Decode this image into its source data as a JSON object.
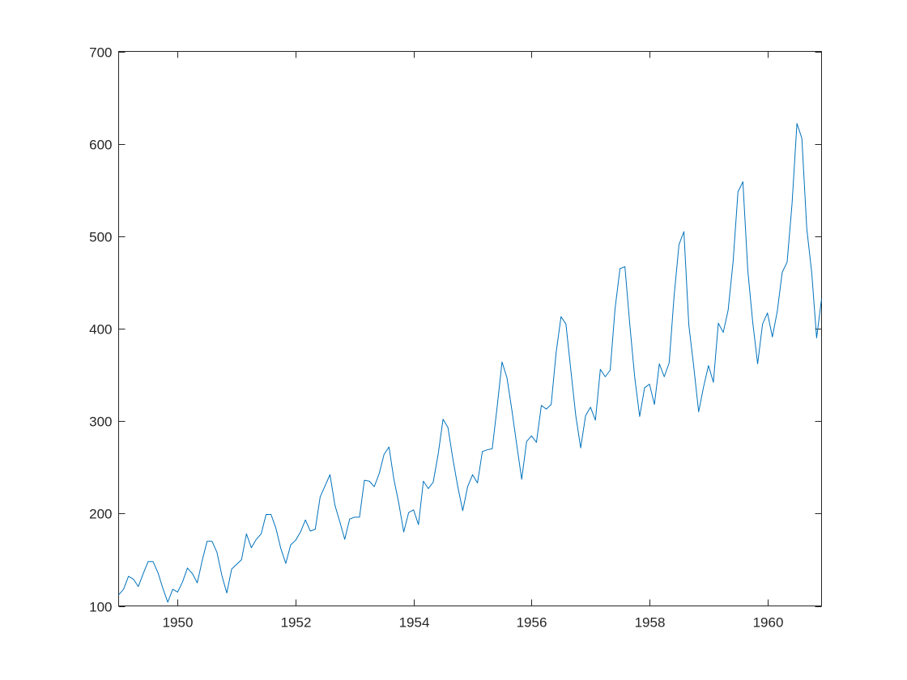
{
  "chart_data": {
    "type": "line",
    "title": "",
    "xlabel": "",
    "ylabel": "",
    "xlim": [
      1949,
      1960.9167
    ],
    "ylim": [
      100,
      700
    ],
    "grid": false,
    "xticks": [
      1950,
      1952,
      1954,
      1956,
      1958,
      1960
    ],
    "yticks": [
      100,
      200,
      300,
      400,
      500,
      600,
      700
    ],
    "xtick_labels": [
      "1950",
      "1952",
      "1954",
      "1956",
      "1958",
      "1960"
    ],
    "ytick_labels": [
      "100",
      "200",
      "300",
      "400",
      "500",
      "600",
      "700"
    ],
    "x_start": 1949,
    "x_step": 0.08333,
    "line_color": "#0072bd",
    "series": [
      {
        "values": [
          112,
          118,
          132,
          129,
          121,
          135,
          148,
          148,
          136,
          119,
          104,
          118,
          115,
          126,
          141,
          135,
          125,
          149,
          170,
          170,
          158,
          133,
          114,
          140,
          145,
          150,
          178,
          163,
          172,
          178,
          199,
          199,
          184,
          162,
          146,
          166,
          171,
          180,
          193,
          181,
          183,
          218,
          230,
          242,
          209,
          191,
          172,
          194,
          196,
          196,
          236,
          235,
          229,
          243,
          264,
          272,
          237,
          211,
          180,
          201,
          204,
          188,
          235,
          227,
          234,
          264,
          302,
          293,
          259,
          229,
          203,
          229,
          242,
          233,
          267,
          269,
          270,
          315,
          364,
          347,
          312,
          274,
          237,
          278,
          284,
          277,
          317,
          313,
          318,
          374,
          413,
          405,
          355,
          306,
          271,
          306,
          315,
          301,
          356,
          348,
          355,
          422,
          465,
          467,
          404,
          347,
          305,
          336,
          340,
          318,
          362,
          348,
          363,
          435,
          491,
          505,
          404,
          359,
          310,
          337,
          360,
          342,
          406,
          396,
          420,
          472,
          548,
          559,
          463,
          407,
          362,
          405,
          417,
          391,
          419,
          461,
          472,
          535,
          622,
          606,
          508,
          461,
          390,
          432
        ]
      }
    ]
  }
}
